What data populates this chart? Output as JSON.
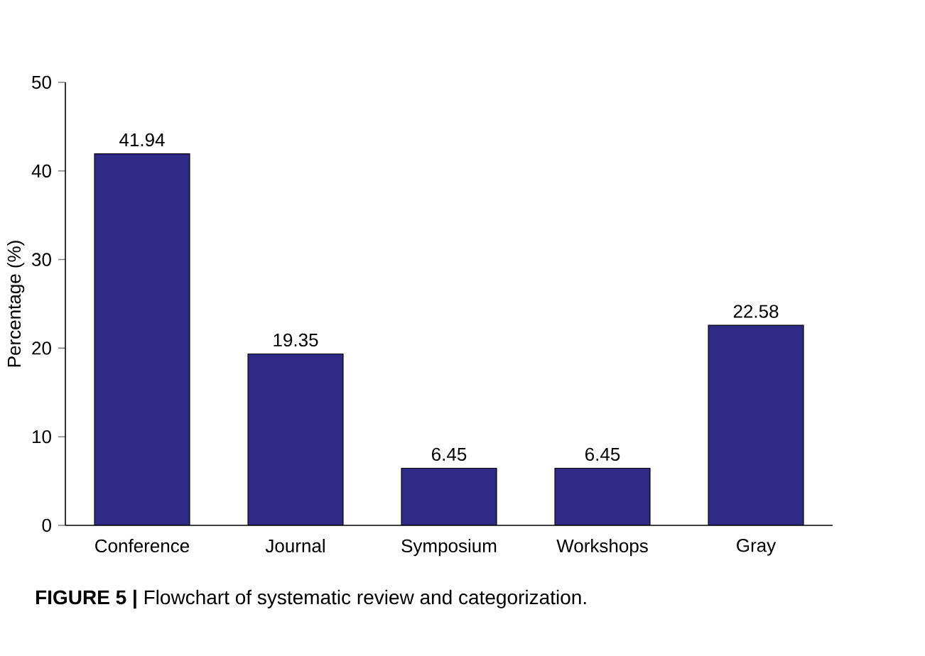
{
  "chart_data": {
    "type": "bar",
    "ylabel": "Percentage (%)",
    "categories": [
      "Conference",
      "Journal",
      "Symposium",
      "Workshops",
      "Gray"
    ],
    "values": [
      41.94,
      19.35,
      6.45,
      6.45,
      22.58
    ],
    "color": "#2e2a86",
    "ylim": [
      0,
      50
    ],
    "yticks": [
      0,
      10,
      20,
      30,
      40,
      50
    ],
    "data_labels": true,
    "annotations": [
      "**FIGURE 5 |** Flowchart of systematic review and categorization."
    ]
  }
}
